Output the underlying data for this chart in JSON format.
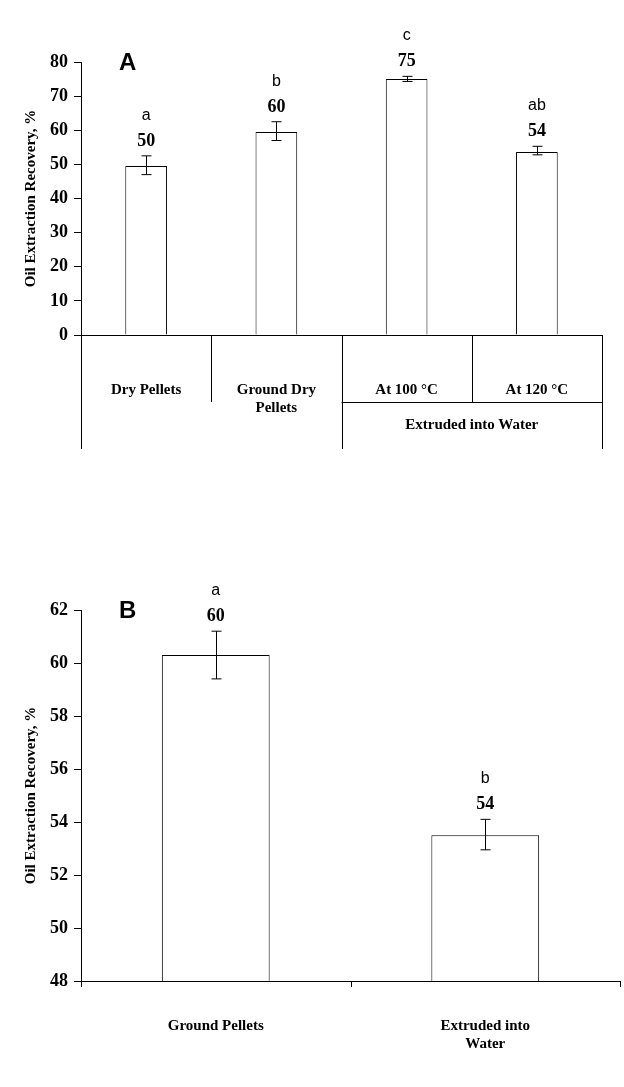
{
  "chart_data": [
    {
      "type": "bar",
      "ylabel": "Oil Extraction Recovery, %",
      "categories": [
        "Dry Pellets",
        "Ground Dry Pellets",
        "At 100 °C",
        "At 120 °C"
      ],
      "values": [
        49.5,
        59.5,
        75,
        53.6
      ],
      "color": "#ffffff",
      "errors": [
        [
          47,
          52.5
        ],
        [
          57,
          62.5
        ],
        [
          74.3,
          75.8
        ],
        [
          52.8,
          55.3
        ]
      ],
      "value_labels": [
        "50",
        "60",
        "75",
        "54"
      ],
      "ylim": [
        0,
        80
      ],
      "yticks": [
        0,
        10,
        20,
        30,
        40,
        50,
        60,
        70,
        80
      ],
      "annotations": [
        "A",
        "Extruded into Water",
        "a",
        "b",
        "c",
        "ab"
      ]
    },
    {
      "type": "bar",
      "ylabel": "Oil Extraction Recovery, %",
      "categories": [
        "Ground Pellets",
        "Extruded into Water"
      ],
      "values": [
        60.3,
        53.5
      ],
      "color": "#ffffff",
      "errors": [
        [
          59.4,
          61.2
        ],
        [
          52.95,
          54.1
        ]
      ],
      "value_labels": [
        "60",
        "54"
      ],
      "ylim": [
        48,
        62
      ],
      "yticks": [
        48,
        50,
        52,
        54,
        56,
        58,
        60,
        62
      ],
      "annotations": [
        "B",
        "a",
        "b"
      ]
    }
  ]
}
